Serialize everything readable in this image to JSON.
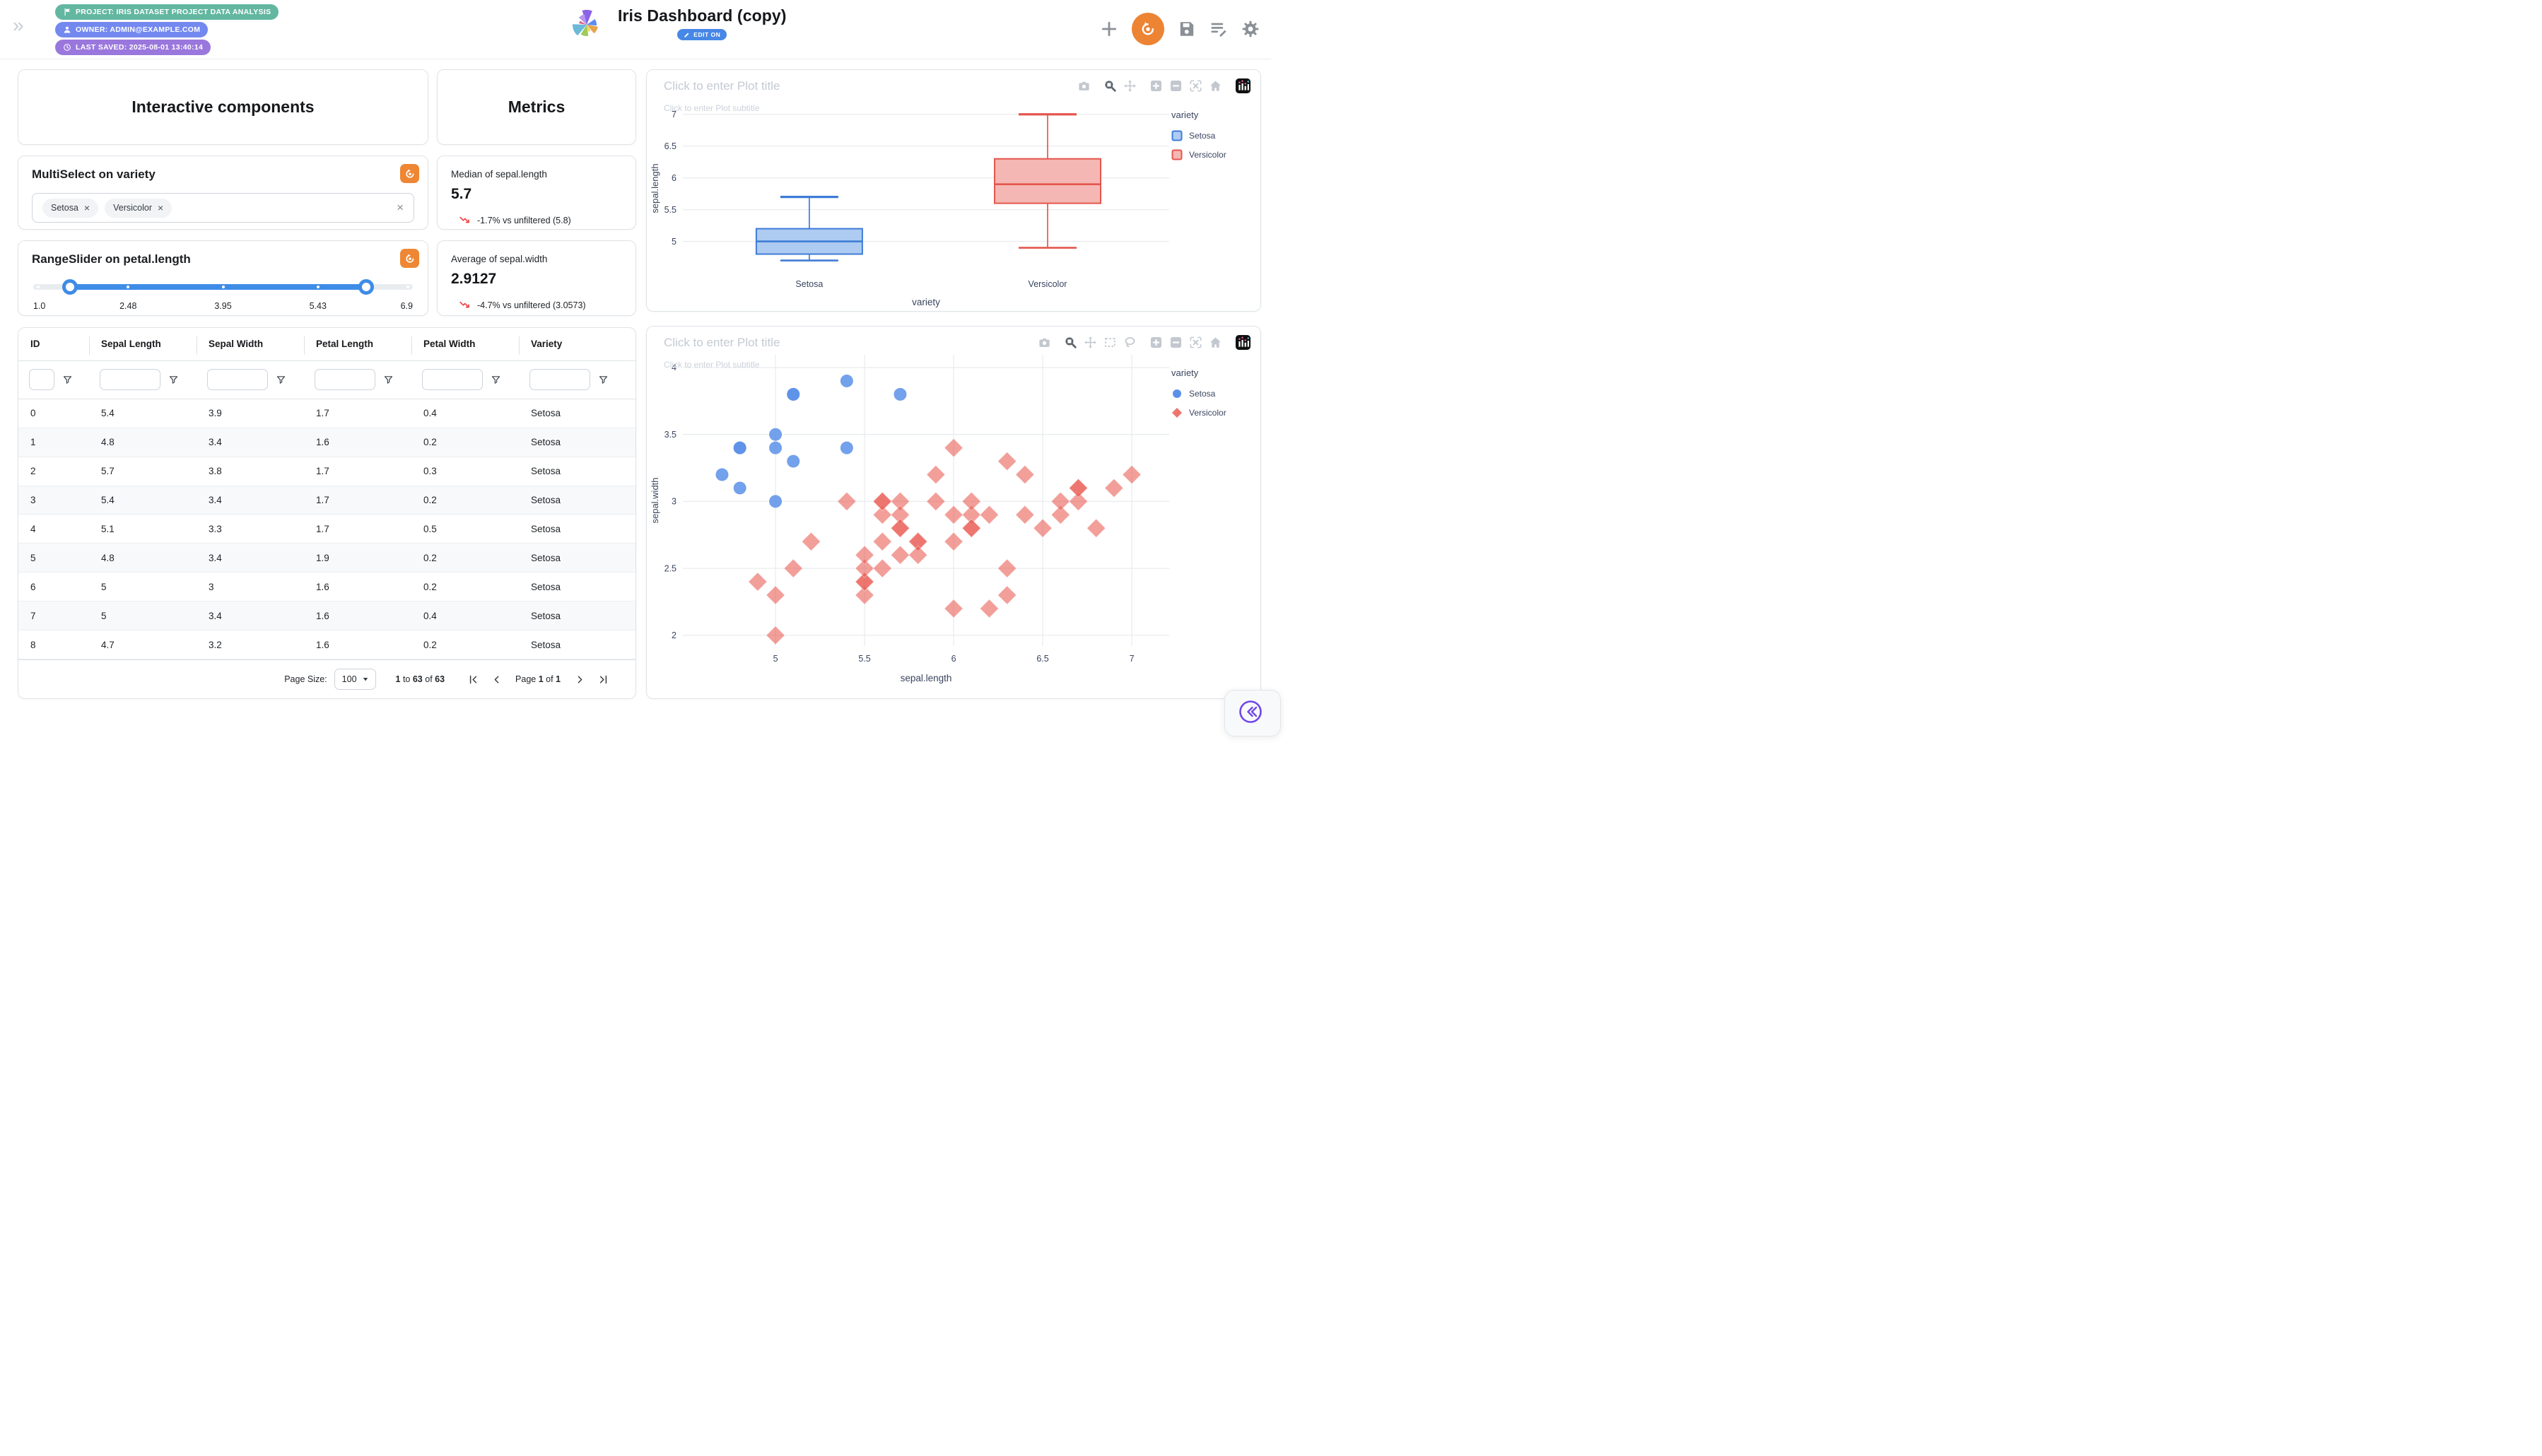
{
  "header": {
    "badges": [
      {
        "icon": "flag-icon",
        "label": "PROJECT: IRIS DATASET PROJECT DATA ANALYSIS",
        "color": "#63b7a0"
      },
      {
        "icon": "user-icon",
        "label": "OWNER: ADMIN@EXAMPLE.COM",
        "color": "#7389f0"
      },
      {
        "icon": "clock-icon",
        "label": "LAST SAVED: 2025-08-01 13:40:14",
        "color": "#9a77dd"
      }
    ],
    "title": "Iris Dashboard (copy)",
    "edit_badge": "EDIT ON"
  },
  "interactive": {
    "section_title": "Interactive components"
  },
  "multiselect": {
    "title": "MultiSelect on variety",
    "values": [
      "Setosa",
      "Versicolor"
    ]
  },
  "rangeslider": {
    "title": "RangeSlider on petal.length",
    "min": 1.0,
    "max": 6.9,
    "selected_values": [
      1.6,
      6.17
    ],
    "marks": [
      "1.0",
      "2.48",
      "3.95",
      "5.43",
      "6.9"
    ],
    "mark_positions": [
      0,
      25,
      50,
      75,
      100
    ],
    "handle_positions": [
      9.6,
      87.7
    ]
  },
  "metrics": {
    "section_title": "Metrics",
    "cards": [
      {
        "label": "Median of sepal.length",
        "value": "5.7",
        "delta": "-1.7% vs unfiltered (5.8)",
        "direction": "down"
      },
      {
        "label": "Average of sepal.width",
        "value": "2.9127",
        "delta": "-4.7% vs unfiltered (3.0573)",
        "direction": "down"
      }
    ]
  },
  "table": {
    "columns": [
      "ID",
      "Sepal Length",
      "Sepal Width",
      "Petal Length",
      "Petal Width",
      "Variety"
    ],
    "rows": [
      [
        "0",
        "5.4",
        "3.9",
        "1.7",
        "0.4",
        "Setosa"
      ],
      [
        "1",
        "4.8",
        "3.4",
        "1.6",
        "0.2",
        "Setosa"
      ],
      [
        "2",
        "5.7",
        "3.8",
        "1.7",
        "0.3",
        "Setosa"
      ],
      [
        "3",
        "5.4",
        "3.4",
        "1.7",
        "0.2",
        "Setosa"
      ],
      [
        "4",
        "5.1",
        "3.3",
        "1.7",
        "0.5",
        "Setosa"
      ],
      [
        "5",
        "4.8",
        "3.4",
        "1.9",
        "0.2",
        "Setosa"
      ],
      [
        "6",
        "5",
        "3",
        "1.6",
        "0.2",
        "Setosa"
      ],
      [
        "7",
        "5",
        "3.4",
        "1.6",
        "0.4",
        "Setosa"
      ],
      [
        "8",
        "4.7",
        "3.2",
        "1.6",
        "0.2",
        "Setosa"
      ]
    ],
    "footer": {
      "page_size_label": "Page Size:",
      "page_size": "100",
      "range_parts": [
        [
          "1",
          true
        ],
        [
          " to ",
          false
        ],
        [
          "63",
          true
        ],
        [
          " of ",
          false
        ],
        [
          "63",
          true
        ]
      ],
      "page_parts": [
        [
          "Page ",
          false
        ],
        [
          "1",
          true
        ],
        [
          " of ",
          false
        ],
        [
          "1",
          true
        ]
      ]
    }
  },
  "chart_data": [
    {
      "type": "box",
      "title": "Click to enter Plot title",
      "subtitle": "Click to enter Plot subtitle",
      "xlabel": "variety",
      "ylabel": "sepal.length",
      "categories": [
        "Setosa",
        "Versicolor"
      ],
      "yticks": [
        5,
        5.5,
        6,
        6.5,
        7
      ],
      "ydomain": [
        4.55,
        7.12
      ],
      "legend_title": "variety",
      "grid": true,
      "legend_position": "right",
      "series": [
        {
          "name": "Setosa",
          "line_color": "#3E7CD6",
          "fill_color": "#AECBF1",
          "min": 4.7,
          "q1": 4.8,
          "median": 5.0,
          "q3": 5.2,
          "max": 5.7
        },
        {
          "name": "Versicolor",
          "line_color": "#E4564D",
          "fill_color": "#F5B7B3",
          "min": 4.9,
          "q1": 5.6,
          "median": 5.9,
          "q3": 6.3,
          "max": 7.0
        }
      ],
      "modebar": [
        "camera",
        "zoom",
        "pan",
        "zoom-in",
        "zoom-out",
        "autoscale",
        "home",
        "edit-chart"
      ]
    },
    {
      "type": "scatter",
      "title": "Click to enter Plot title",
      "subtitle": "Click to enter Plot subtitle",
      "xlabel": "sepal.length",
      "ylabel": "sepal.width",
      "xticks": [
        5,
        5.5,
        6,
        6.5,
        7
      ],
      "yticks": [
        2,
        2.5,
        3,
        3.5,
        4
      ],
      "xdomain": [
        4.48,
        7.21
      ],
      "ydomain": [
        1.92,
        4.095
      ],
      "legend_title": "variety",
      "grid": true,
      "legend_position": "right",
      "series": [
        {
          "name": "Setosa",
          "marker": "circle",
          "color": "#5B90E8",
          "points": [
            [
              5.4,
              3.9
            ],
            [
              4.8,
              3.4
            ],
            [
              5.7,
              3.8
            ],
            [
              5.4,
              3.4
            ],
            [
              5.1,
              3.3
            ],
            [
              4.8,
              3.4
            ],
            [
              5.0,
              3.0
            ],
            [
              5.0,
              3.4
            ],
            [
              4.7,
              3.2
            ],
            [
              4.8,
              3.1
            ],
            [
              5.0,
              3.5
            ],
            [
              5.1,
              3.8
            ],
            [
              5.1,
              3.8
            ]
          ]
        },
        {
          "name": "Versicolor",
          "marker": "diamond",
          "color": "#EA5D55",
          "points": [
            [
              7.0,
              3.2
            ],
            [
              6.4,
              3.2
            ],
            [
              6.9,
              3.1
            ],
            [
              5.5,
              2.3
            ],
            [
              6.5,
              2.8
            ],
            [
              5.7,
              2.8
            ],
            [
              6.3,
              3.3
            ],
            [
              4.9,
              2.4
            ],
            [
              6.6,
              2.9
            ],
            [
              5.2,
              2.7
            ],
            [
              5.0,
              2.0
            ],
            [
              5.9,
              3.0
            ],
            [
              6.0,
              2.2
            ],
            [
              6.1,
              2.9
            ],
            [
              5.6,
              2.9
            ],
            [
              6.7,
              3.1
            ],
            [
              5.6,
              3.0
            ],
            [
              5.8,
              2.7
            ],
            [
              6.2,
              2.2
            ],
            [
              5.6,
              2.5
            ],
            [
              5.9,
              3.2
            ],
            [
              6.1,
              2.8
            ],
            [
              6.3,
              2.5
            ],
            [
              6.1,
              2.8
            ],
            [
              6.4,
              2.9
            ],
            [
              6.6,
              3.0
            ],
            [
              6.8,
              2.8
            ],
            [
              6.7,
              3.0
            ],
            [
              6.0,
              2.9
            ],
            [
              5.7,
              2.6
            ],
            [
              5.5,
              2.4
            ],
            [
              5.5,
              2.4
            ],
            [
              5.8,
              2.7
            ],
            [
              6.0,
              2.7
            ],
            [
              5.4,
              3.0
            ],
            [
              6.0,
              3.4
            ],
            [
              6.7,
              3.1
            ],
            [
              6.3,
              2.3
            ],
            [
              5.6,
              3.0
            ],
            [
              5.5,
              2.5
            ],
            [
              5.5,
              2.6
            ],
            [
              6.1,
              3.0
            ],
            [
              5.8,
              2.6
            ],
            [
              5.0,
              2.3
            ],
            [
              5.6,
              2.7
            ],
            [
              5.7,
              3.0
            ],
            [
              5.7,
              2.9
            ],
            [
              6.2,
              2.9
            ],
            [
              5.1,
              2.5
            ],
            [
              5.7,
              2.8
            ]
          ]
        }
      ],
      "modebar": [
        "camera",
        "zoom",
        "pan",
        "box-select",
        "lasso",
        "zoom-in",
        "zoom-out",
        "autoscale",
        "home",
        "edit-chart"
      ]
    }
  ]
}
